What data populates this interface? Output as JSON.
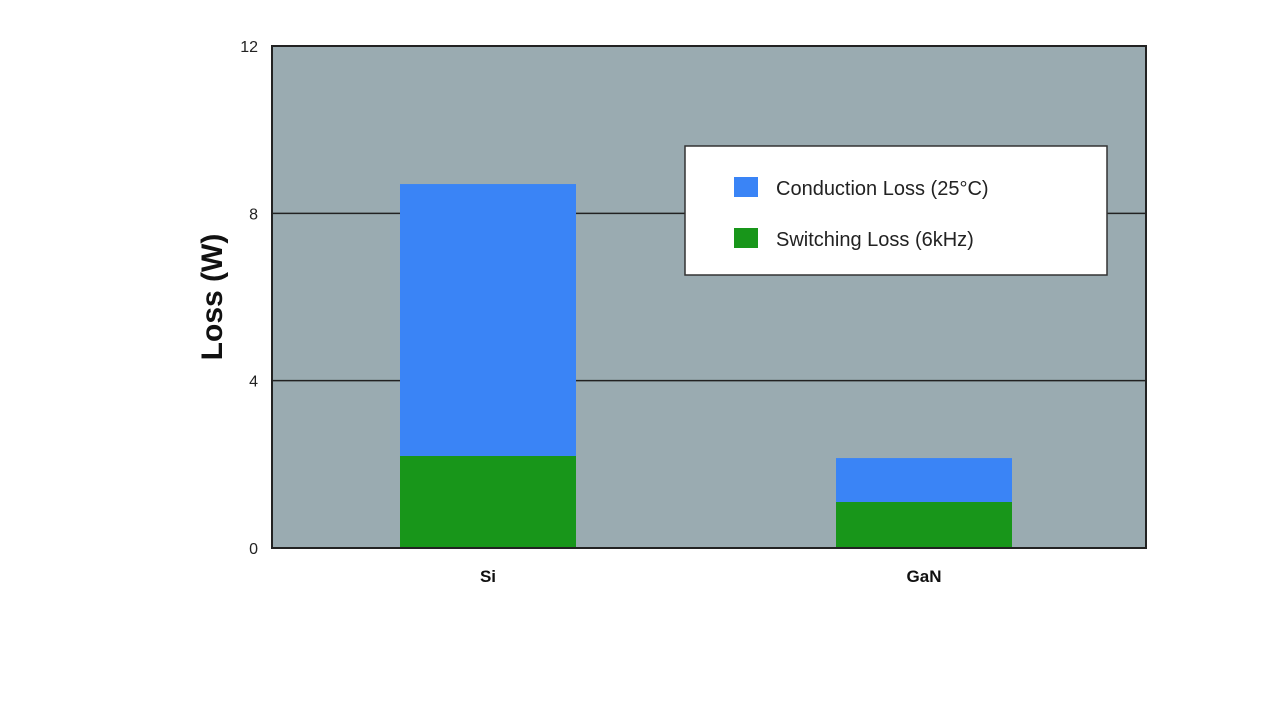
{
  "chart_data": {
    "type": "bar",
    "stacked": true,
    "title": "",
    "xlabel": "",
    "ylabel": "Loss (W)",
    "ylim": [
      0,
      12
    ],
    "yticks": [
      0,
      4,
      8,
      12
    ],
    "grid": true,
    "legend_position": "top-right",
    "categories": [
      "Si",
      "GaN"
    ],
    "series": [
      {
        "name": "Switching Loss (6kHz)",
        "color": "#18961a",
        "values": [
          2.2,
          1.1
        ]
      },
      {
        "name": "Conduction Loss (25°C)",
        "color": "#3a84f6",
        "values": [
          6.5,
          1.05
        ]
      }
    ],
    "legend_order": [
      1,
      0
    ],
    "plot_background": "#9aabb1"
  }
}
